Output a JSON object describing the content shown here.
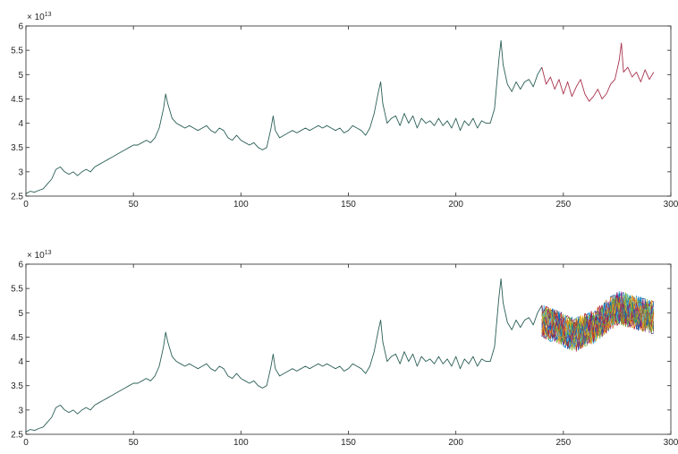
{
  "chart_data": [
    {
      "type": "line",
      "title": "",
      "xlabel": "",
      "ylabel": "",
      "exponent_base": "× 10",
      "exponent_power": "13",
      "xlim": [
        0,
        300
      ],
      "ylim": [
        2.5,
        6
      ],
      "xticks": [
        0,
        50,
        100,
        150,
        200,
        250,
        300
      ],
      "xtick_labels": [
        "0",
        "50",
        "100",
        "150",
        "200",
        "250",
        "300"
      ],
      "yticks": [
        2.5,
        3,
        3.5,
        4,
        4.5,
        5,
        5.5,
        6
      ],
      "ytick_labels": [
        "2.5",
        "3",
        "3.5",
        "4",
        "4.5",
        "5",
        "5.5",
        "6"
      ],
      "grid": false,
      "series": [
        {
          "color": "#2b5f57",
          "x": [
            0,
            2,
            4,
            6,
            8,
            10,
            12,
            14,
            16,
            18,
            20,
            22,
            24,
            26,
            28,
            30,
            32,
            34,
            36,
            38,
            40,
            42,
            44,
            46,
            48,
            50,
            52,
            54,
            56,
            58,
            60,
            62,
            64,
            65,
            66,
            68,
            70,
            72,
            74,
            76,
            78,
            80,
            82,
            84,
            86,
            88,
            90,
            92,
            94,
            96,
            98,
            100,
            102,
            104,
            106,
            108,
            110,
            112,
            114,
            115,
            116,
            118,
            120,
            122,
            124,
            126,
            128,
            130,
            132,
            134,
            136,
            138,
            140,
            142,
            144,
            146,
            148,
            150,
            152,
            154,
            156,
            158,
            160,
            162,
            164,
            165,
            166,
            168,
            170,
            172,
            174,
            176,
            178,
            180,
            182,
            184,
            186,
            188,
            190,
            192,
            194,
            196,
            198,
            200,
            202,
            204,
            206,
            208,
            210,
            212,
            214,
            216,
            218,
            220,
            221,
            222,
            224,
            226,
            228,
            230,
            232,
            234,
            236,
            238,
            240
          ],
          "y": [
            2.55,
            2.6,
            2.58,
            2.62,
            2.65,
            2.75,
            2.85,
            3.05,
            3.1,
            3.0,
            2.95,
            3.0,
            2.92,
            3.0,
            3.05,
            3.0,
            3.1,
            3.15,
            3.2,
            3.25,
            3.3,
            3.35,
            3.4,
            3.45,
            3.5,
            3.55,
            3.55,
            3.6,
            3.65,
            3.6,
            3.7,
            3.9,
            4.3,
            4.6,
            4.4,
            4.1,
            4.0,
            3.95,
            3.9,
            3.95,
            3.9,
            3.85,
            3.9,
            3.95,
            3.85,
            3.8,
            3.9,
            3.85,
            3.7,
            3.65,
            3.75,
            3.65,
            3.6,
            3.55,
            3.6,
            3.5,
            3.45,
            3.5,
            3.9,
            4.15,
            3.85,
            3.7,
            3.75,
            3.8,
            3.85,
            3.8,
            3.85,
            3.9,
            3.85,
            3.9,
            3.95,
            3.9,
            3.95,
            3.9,
            3.85,
            3.9,
            3.8,
            3.85,
            3.95,
            3.9,
            3.85,
            3.75,
            3.9,
            4.2,
            4.65,
            4.85,
            4.4,
            4.0,
            4.1,
            4.15,
            3.95,
            4.2,
            4.0,
            4.15,
            3.9,
            4.1,
            4.0,
            4.05,
            3.95,
            4.1,
            3.95,
            4.05,
            3.9,
            4.1,
            3.85,
            4.05,
            3.95,
            4.1,
            3.9,
            4.05,
            4.0,
            4.0,
            4.3,
            5.3,
            5.7,
            5.2,
            4.8,
            4.65,
            4.85,
            4.7,
            4.85,
            4.9,
            4.75,
            5.0,
            5.15
          ]
        },
        {
          "color": "#a8324b",
          "x": [
            240,
            242,
            244,
            246,
            248,
            250,
            252,
            254,
            256,
            258,
            260,
            262,
            264,
            266,
            268,
            270,
            272,
            274,
            276,
            277,
            278,
            280,
            282,
            284,
            286,
            288,
            290,
            292
          ],
          "y": [
            5.15,
            4.8,
            4.95,
            4.7,
            4.9,
            4.6,
            4.85,
            4.55,
            4.75,
            4.9,
            4.6,
            4.45,
            4.55,
            4.7,
            4.5,
            4.6,
            4.8,
            4.9,
            5.3,
            5.65,
            5.05,
            5.15,
            4.95,
            5.05,
            4.85,
            5.1,
            4.9,
            5.05
          ]
        }
      ]
    },
    {
      "type": "line",
      "title": "",
      "xlabel": "",
      "ylabel": "",
      "exponent_base": "× 10",
      "exponent_power": "13",
      "xlim": [
        0,
        300
      ],
      "ylim": [
        2.5,
        6
      ],
      "xticks": [
        0,
        50,
        100,
        150,
        200,
        250,
        300
      ],
      "xtick_labels": [
        "0",
        "50",
        "100",
        "150",
        "200",
        "250",
        "300"
      ],
      "yticks": [
        2.5,
        3,
        3.5,
        4,
        4.5,
        5,
        5.5,
        6
      ],
      "ytick_labels": [
        "2.5",
        "3",
        "3.5",
        "4",
        "4.5",
        "5",
        "5.5",
        "6"
      ],
      "grid": false,
      "history": {
        "color": "#2b5f57",
        "x": [
          0,
          2,
          4,
          6,
          8,
          10,
          12,
          14,
          16,
          18,
          20,
          22,
          24,
          26,
          28,
          30,
          32,
          34,
          36,
          38,
          40,
          42,
          44,
          46,
          48,
          50,
          52,
          54,
          56,
          58,
          60,
          62,
          64,
          65,
          66,
          68,
          70,
          72,
          74,
          76,
          78,
          80,
          82,
          84,
          86,
          88,
          90,
          92,
          94,
          96,
          98,
          100,
          102,
          104,
          106,
          108,
          110,
          112,
          114,
          115,
          116,
          118,
          120,
          122,
          124,
          126,
          128,
          130,
          132,
          134,
          136,
          138,
          140,
          142,
          144,
          146,
          148,
          150,
          152,
          154,
          156,
          158,
          160,
          162,
          164,
          165,
          166,
          168,
          170,
          172,
          174,
          176,
          178,
          180,
          182,
          184,
          186,
          188,
          190,
          192,
          194,
          196,
          198,
          200,
          202,
          204,
          206,
          208,
          210,
          212,
          214,
          216,
          218,
          220,
          221,
          222,
          224,
          226,
          228,
          230,
          232,
          234,
          236,
          238,
          240
        ],
        "y": [
          2.55,
          2.6,
          2.58,
          2.62,
          2.65,
          2.75,
          2.85,
          3.05,
          3.1,
          3.0,
          2.95,
          3.0,
          2.92,
          3.0,
          3.05,
          3.0,
          3.1,
          3.15,
          3.2,
          3.25,
          3.3,
          3.35,
          3.4,
          3.45,
          3.5,
          3.55,
          3.55,
          3.6,
          3.65,
          3.6,
          3.7,
          3.9,
          4.3,
          4.6,
          4.4,
          4.1,
          4.0,
          3.95,
          3.9,
          3.95,
          3.9,
          3.85,
          3.9,
          3.95,
          3.85,
          3.8,
          3.9,
          3.85,
          3.7,
          3.65,
          3.75,
          3.65,
          3.6,
          3.55,
          3.6,
          3.5,
          3.45,
          3.5,
          3.9,
          4.15,
          3.85,
          3.7,
          3.75,
          3.8,
          3.85,
          3.8,
          3.85,
          3.9,
          3.85,
          3.9,
          3.95,
          3.9,
          3.95,
          3.9,
          3.85,
          3.9,
          3.8,
          3.85,
          3.95,
          3.9,
          3.85,
          3.75,
          3.9,
          4.2,
          4.65,
          4.85,
          4.4,
          4.0,
          4.1,
          4.15,
          3.95,
          4.2,
          4.0,
          4.15,
          3.9,
          4.1,
          4.0,
          4.05,
          3.95,
          4.1,
          3.95,
          4.05,
          3.9,
          4.1,
          3.85,
          4.05,
          3.95,
          4.1,
          3.9,
          4.05,
          4.0,
          4.0,
          4.3,
          5.3,
          5.7,
          5.2,
          4.8,
          4.65,
          4.85,
          4.7,
          4.85,
          4.9,
          4.75,
          5.0,
          5.15
        ]
      },
      "forecast_paths": {
        "x_start": 240,
        "x_end": 292,
        "x_step": 1,
        "count": 40,
        "center_x": [
          240,
          244,
          248,
          252,
          256,
          260,
          264,
          268,
          272,
          276,
          280,
          284,
          288,
          292
        ],
        "center_y": [
          4.85,
          4.75,
          4.7,
          4.6,
          4.55,
          4.65,
          4.7,
          4.85,
          5.0,
          5.1,
          5.05,
          5.0,
          4.95,
          4.9
        ],
        "spread": 0.35,
        "colors": [
          "#0072bd",
          "#d95319",
          "#edb120",
          "#7e2f8e",
          "#77ac30",
          "#4dbeee",
          "#a2142f"
        ]
      }
    }
  ]
}
